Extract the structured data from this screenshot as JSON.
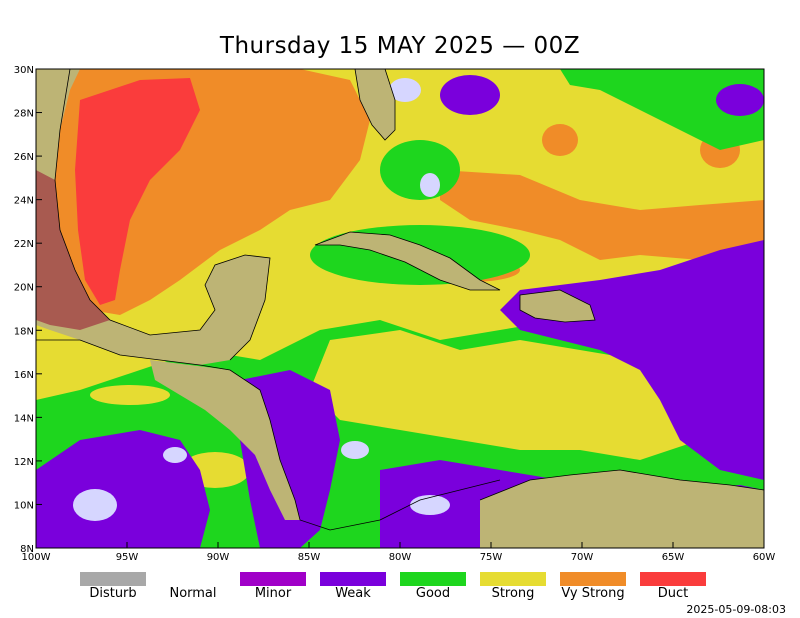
{
  "title": "Thursday 15 MAY 2025 — 00Z",
  "timestamp": "2025-05-09-08:03",
  "map": {
    "lon_range": [
      -100,
      -60
    ],
    "lat_range": [
      8,
      30
    ],
    "x_ticks": [
      {
        "lon": -100,
        "label": "100W"
      },
      {
        "lon": -95,
        "label": "95W"
      },
      {
        "lon": -90,
        "label": "90W"
      },
      {
        "lon": -85,
        "label": "85W"
      },
      {
        "lon": -80,
        "label": "80W"
      },
      {
        "lon": -75,
        "label": "75W"
      },
      {
        "lon": -70,
        "label": "70W"
      },
      {
        "lon": -65,
        "label": "65W"
      },
      {
        "lon": -60,
        "label": "60W"
      }
    ],
    "y_ticks": [
      {
        "lat": 30,
        "label": "30N"
      },
      {
        "lat": 28,
        "label": "28N"
      },
      {
        "lat": 26,
        "label": "26N"
      },
      {
        "lat": 24,
        "label": "24N"
      },
      {
        "lat": 22,
        "label": "22N"
      },
      {
        "lat": 20,
        "label": "20N"
      },
      {
        "lat": 18,
        "label": "18N"
      },
      {
        "lat": 16,
        "label": "16N"
      },
      {
        "lat": 14,
        "label": "14N"
      },
      {
        "lat": 12,
        "label": "12N"
      },
      {
        "lat": 10,
        "label": "10N"
      },
      {
        "lat": 8,
        "label": "8N"
      }
    ]
  },
  "legend": [
    {
      "label": "Disturb",
      "color": "#a8a8a8"
    },
    {
      "label": "Normal",
      "color": "#ffffff"
    },
    {
      "label": "Minor",
      "color": "#a000c8"
    },
    {
      "label": "Weak",
      "color": "#7a00dc"
    },
    {
      "label": "Good",
      "color": "#1ed61e"
    },
    {
      "label": "Strong",
      "color": "#e6dc32"
    },
    {
      "label": "Vy Strong",
      "color": "#f08c28"
    },
    {
      "label": "Duct",
      "color": "#fa3c3c"
    }
  ],
  "colors": {
    "land": "#bdb475",
    "normal_fill": "#d6d6ff",
    "coastline": "#000000"
  }
}
